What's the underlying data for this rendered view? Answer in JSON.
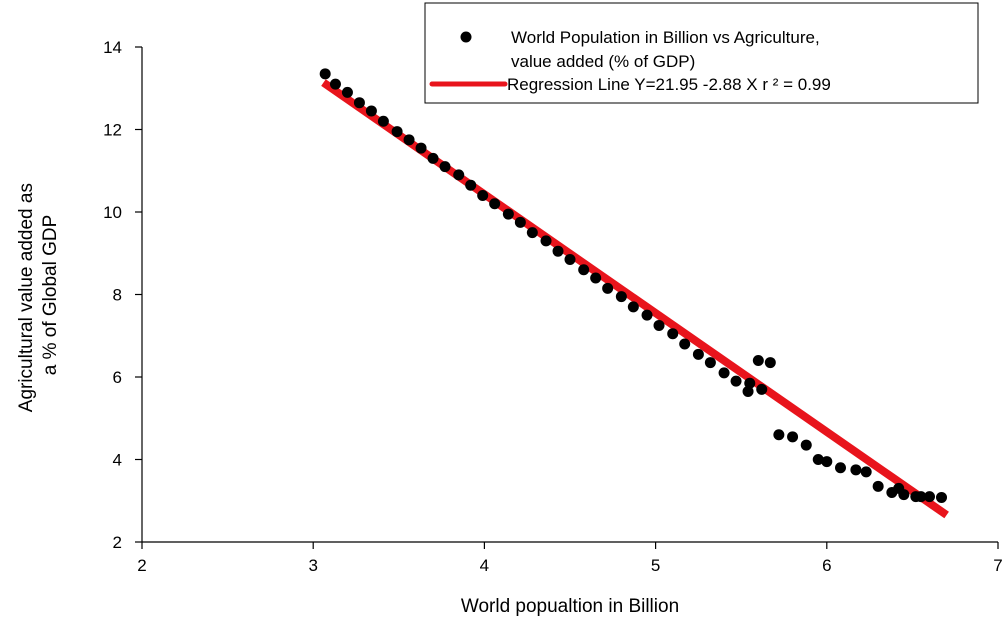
{
  "chart_data": {
    "type": "scatter",
    "xlabel": "World popualtion in Billion",
    "ylabel_lines": [
      "Agricultural value added as",
      "a % of Global GDP"
    ],
    "xlim": [
      2,
      7
    ],
    "ylim": [
      2,
      14
    ],
    "x_ticks": [
      "2",
      "3",
      "4",
      "5",
      "6",
      "7"
    ],
    "y_ticks": [
      "2",
      "4",
      "6",
      "8",
      "10",
      "12",
      "14"
    ],
    "grid": false,
    "legend_position": "top-right",
    "legend": {
      "scatter_label_lines": [
        "World Population in Billion vs Agriculture,",
        "value added (% of GDP)"
      ],
      "line_label": "Regression Line Y=21.95 -2.88 X r ² = 0.99"
    },
    "colors": {
      "points": "#000000",
      "regression": "#e8141c"
    },
    "series": [
      {
        "kind": "points",
        "points": [
          [
            3.07,
            13.35
          ],
          [
            3.13,
            13.1
          ],
          [
            3.2,
            12.9
          ],
          [
            3.27,
            12.65
          ],
          [
            3.34,
            12.45
          ],
          [
            3.41,
            12.2
          ],
          [
            3.49,
            11.95
          ],
          [
            3.56,
            11.75
          ],
          [
            3.63,
            11.55
          ],
          [
            3.7,
            11.3
          ],
          [
            3.77,
            11.1
          ],
          [
            3.85,
            10.9
          ],
          [
            3.92,
            10.65
          ],
          [
            3.99,
            10.4
          ],
          [
            4.06,
            10.2
          ],
          [
            4.14,
            9.95
          ],
          [
            4.21,
            9.75
          ],
          [
            4.28,
            9.5
          ],
          [
            4.36,
            9.3
          ],
          [
            4.43,
            9.05
          ],
          [
            4.5,
            8.85
          ],
          [
            4.58,
            8.6
          ],
          [
            4.65,
            8.4
          ],
          [
            4.72,
            8.15
          ],
          [
            4.8,
            7.95
          ],
          [
            4.87,
            7.7
          ],
          [
            4.95,
            7.5
          ],
          [
            5.02,
            7.25
          ],
          [
            5.1,
            7.05
          ],
          [
            5.17,
            6.8
          ],
          [
            5.25,
            6.55
          ],
          [
            5.32,
            6.35
          ],
          [
            5.4,
            6.1
          ],
          [
            5.47,
            5.9
          ],
          [
            5.54,
            5.65
          ],
          [
            5.6,
            6.4
          ],
          [
            5.67,
            6.35
          ],
          [
            5.72,
            4.6
          ],
          [
            5.8,
            4.55
          ],
          [
            5.88,
            4.35
          ],
          [
            5.95,
            4.0
          ],
          [
            6.0,
            3.95
          ],
          [
            6.08,
            3.8
          ],
          [
            6.17,
            3.75
          ],
          [
            6.23,
            3.7
          ],
          [
            6.3,
            3.35
          ],
          [
            6.38,
            3.2
          ],
          [
            6.45,
            3.15
          ],
          [
            6.52,
            3.1
          ],
          [
            6.6,
            3.1
          ],
          [
            6.67,
            3.08
          ],
          [
            5.55,
            5.85
          ],
          [
            5.62,
            5.7
          ],
          [
            6.55,
            3.1
          ],
          [
            6.42,
            3.3
          ]
        ]
      },
      {
        "kind": "regression",
        "intercept": 21.95,
        "slope": -2.88,
        "x_range": [
          3.06,
          6.7
        ]
      }
    ]
  }
}
